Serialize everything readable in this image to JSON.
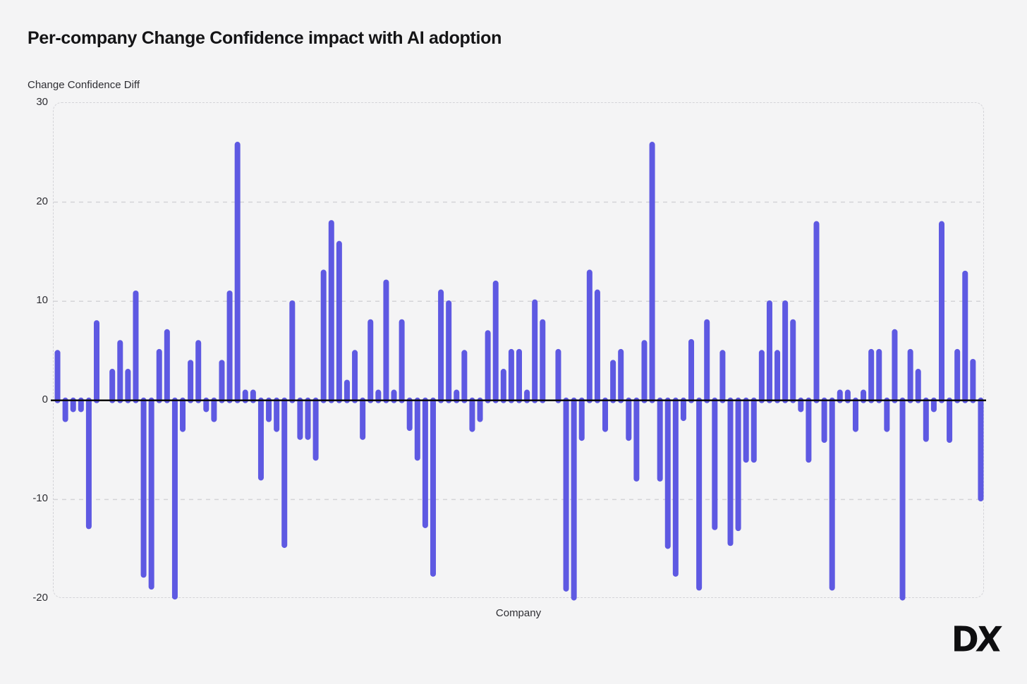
{
  "title": "Per-company Change Confidence impact with AI adoption",
  "y_axis_label": "Change Confidence Diff",
  "x_axis_label": "Company",
  "logo_text": "DX",
  "colors": {
    "background": "#f4f4f5",
    "bar": "#5E59E2",
    "zero_line": "#0a0a0a",
    "gridline": "#d4d4d8",
    "title_text": "#141416",
    "axis_text": "#2e2e33"
  },
  "chart_data": {
    "type": "bar",
    "title": "Per-company Change Confidence impact with AI adoption",
    "xlabel": "Company",
    "ylabel": "Change Confidence Diff",
    "ylim": [
      -20,
      30
    ],
    "yticks": [
      30,
      20,
      10,
      0,
      -10,
      -20
    ],
    "grid": "horizontal-dashed",
    "legend": "none",
    "x_tick_labels": "none (one bar per anonymous company)",
    "values": [
      4.8,
      -1.9,
      -0.9,
      -0.9,
      -12.7,
      7.8,
      0.0,
      2.9,
      5.8,
      2.9,
      10.8,
      -17.6,
      -18.8,
      4.9,
      6.9,
      -19.8,
      -2.9,
      3.8,
      5.8,
      -0.9,
      -1.9,
      3.8,
      10.8,
      25.8,
      0.8,
      0.8,
      -7.8,
      -1.9,
      -2.9,
      -14.6,
      9.8,
      -3.7,
      -3.7,
      -5.8,
      12.9,
      17.9,
      15.8,
      1.8,
      4.8,
      -3.7,
      7.9,
      0.8,
      11.9,
      0.8,
      7.9,
      -2.8,
      -5.8,
      -12.6,
      -17.5,
      10.9,
      9.8,
      0.8,
      4.8,
      -2.9,
      -1.9,
      6.8,
      11.8,
      2.9,
      4.9,
      4.9,
      0.8,
      9.9,
      7.9,
      0.0,
      4.9,
      -19.0,
      -19.9,
      -3.8,
      12.9,
      10.9,
      -2.9,
      3.8,
      4.9,
      -3.8,
      -7.9,
      5.8,
      25.8,
      -7.9,
      -14.7,
      -17.5,
      -1.8,
      5.9,
      -18.9,
      7.9,
      -12.8,
      4.8,
      -14.4,
      -12.9,
      -6.0,
      -6.0,
      4.8,
      9.8,
      4.8,
      9.8,
      7.9,
      -0.9,
      -6.0,
      17.8,
      -4.0,
      -18.9,
      0.8,
      0.8,
      -2.9,
      0.8,
      4.9,
      4.9,
      -2.9,
      6.9,
      -19.9,
      4.9,
      2.9,
      -3.9,
      -0.9,
      17.8,
      -4.0,
      4.9,
      12.8,
      3.9,
      -9.9
    ]
  }
}
